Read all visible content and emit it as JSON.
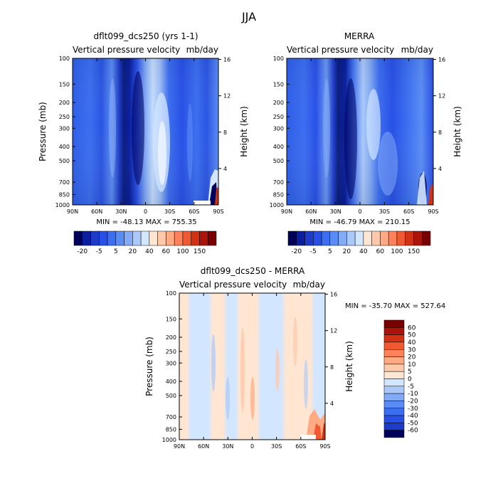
{
  "figure_title": "JJA",
  "chart_data": [
    {
      "type": "heatmap",
      "title": "dflt099_dcs250 (yrs 1-1)",
      "left_subtitle": "Vertical pressure velocity",
      "right_subtitle": "mb/day",
      "ylabel": "Pressure (mb)",
      "ylabel_right": "Height (km)",
      "x_ticks": [
        "90N",
        "60N",
        "30N",
        "0",
        "30S",
        "60S",
        "90S"
      ],
      "y_ticks": [
        "100",
        "150",
        "200",
        "250",
        "300",
        "400",
        "500",
        "700",
        "850",
        "1000"
      ],
      "y_ticks_right": [
        "16",
        "12",
        "8",
        "4"
      ],
      "stats": "MIN = -48.13   MAX = 755.35",
      "colorbar": {
        "orientation": "horizontal",
        "labels": [
          "-20",
          "-5",
          "5",
          "20",
          "40",
          "60",
          "100",
          "150"
        ],
        "colors": [
          "#00005a",
          "#0a1e9e",
          "#1e3cc8",
          "#2850e6",
          "#3c6ef0",
          "#5a8cf5",
          "#82aaf5",
          "#aac8fa",
          "#d2e6ff",
          "#ffe6d2",
          "#ffc8aa",
          "#ffaa82",
          "#ff825a",
          "#f05a32",
          "#d23214",
          "#aa140a",
          "#780000"
        ]
      }
    },
    {
      "type": "heatmap",
      "title": "MERRA",
      "left_subtitle": "Vertical pressure velocity",
      "right_subtitle": "mb/day",
      "ylabel_right": "Height (km)",
      "x_ticks": [
        "90N",
        "60N",
        "30N",
        "0",
        "30S",
        "60S",
        "90S"
      ],
      "y_ticks": [
        "100",
        "150",
        "200",
        "250",
        "300",
        "400",
        "500",
        "700",
        "850",
        "1000"
      ],
      "y_ticks_right": [
        "16",
        "12",
        "8",
        "4"
      ],
      "stats": "MIN = -46.79   MAX = 210.15",
      "colorbar": {
        "orientation": "horizontal",
        "labels": [
          "-20",
          "-5",
          "5",
          "20",
          "40",
          "60",
          "100",
          "150"
        ],
        "colors": [
          "#00005a",
          "#0a1e9e",
          "#1e3cc8",
          "#2850e6",
          "#3c6ef0",
          "#5a8cf5",
          "#82aaf5",
          "#aac8fa",
          "#d2e6ff",
          "#ffe6d2",
          "#ffc8aa",
          "#ffaa82",
          "#ff825a",
          "#f05a32",
          "#d23214",
          "#aa140a",
          "#780000"
        ]
      }
    },
    {
      "type": "heatmap",
      "title": "dflt099_dcs250 - MERRA",
      "left_subtitle": "Vertical pressure velocity",
      "right_subtitle": "mb/day",
      "ylabel": "Pressure (mb)",
      "ylabel_right": "Height (km)",
      "x_ticks": [
        "90N",
        "60N",
        "30N",
        "0",
        "30S",
        "60S",
        "90S"
      ],
      "y_ticks": [
        "100",
        "150",
        "200",
        "250",
        "300",
        "400",
        "500",
        "700",
        "850",
        "1000"
      ],
      "y_ticks_right": [
        "16",
        "12",
        "8",
        "4"
      ],
      "stats": "MIN = -35.70   MAX = 527.64",
      "colorbar": {
        "orientation": "vertical",
        "labels": [
          "60",
          "50",
          "40",
          "30",
          "20",
          "10",
          "5",
          "0",
          "-5",
          "-10",
          "-20",
          "-30",
          "-40",
          "-50",
          "-60"
        ],
        "colors": [
          "#780000",
          "#aa140a",
          "#d23214",
          "#f05a32",
          "#ff825a",
          "#ffaa82",
          "#ffc8aa",
          "#ffe6d2",
          "#d2e6ff",
          "#aac8fa",
          "#82aaf5",
          "#5a8cf5",
          "#3c6ef0",
          "#2850e6",
          "#1e3cc8",
          "#00005a"
        ]
      }
    }
  ]
}
